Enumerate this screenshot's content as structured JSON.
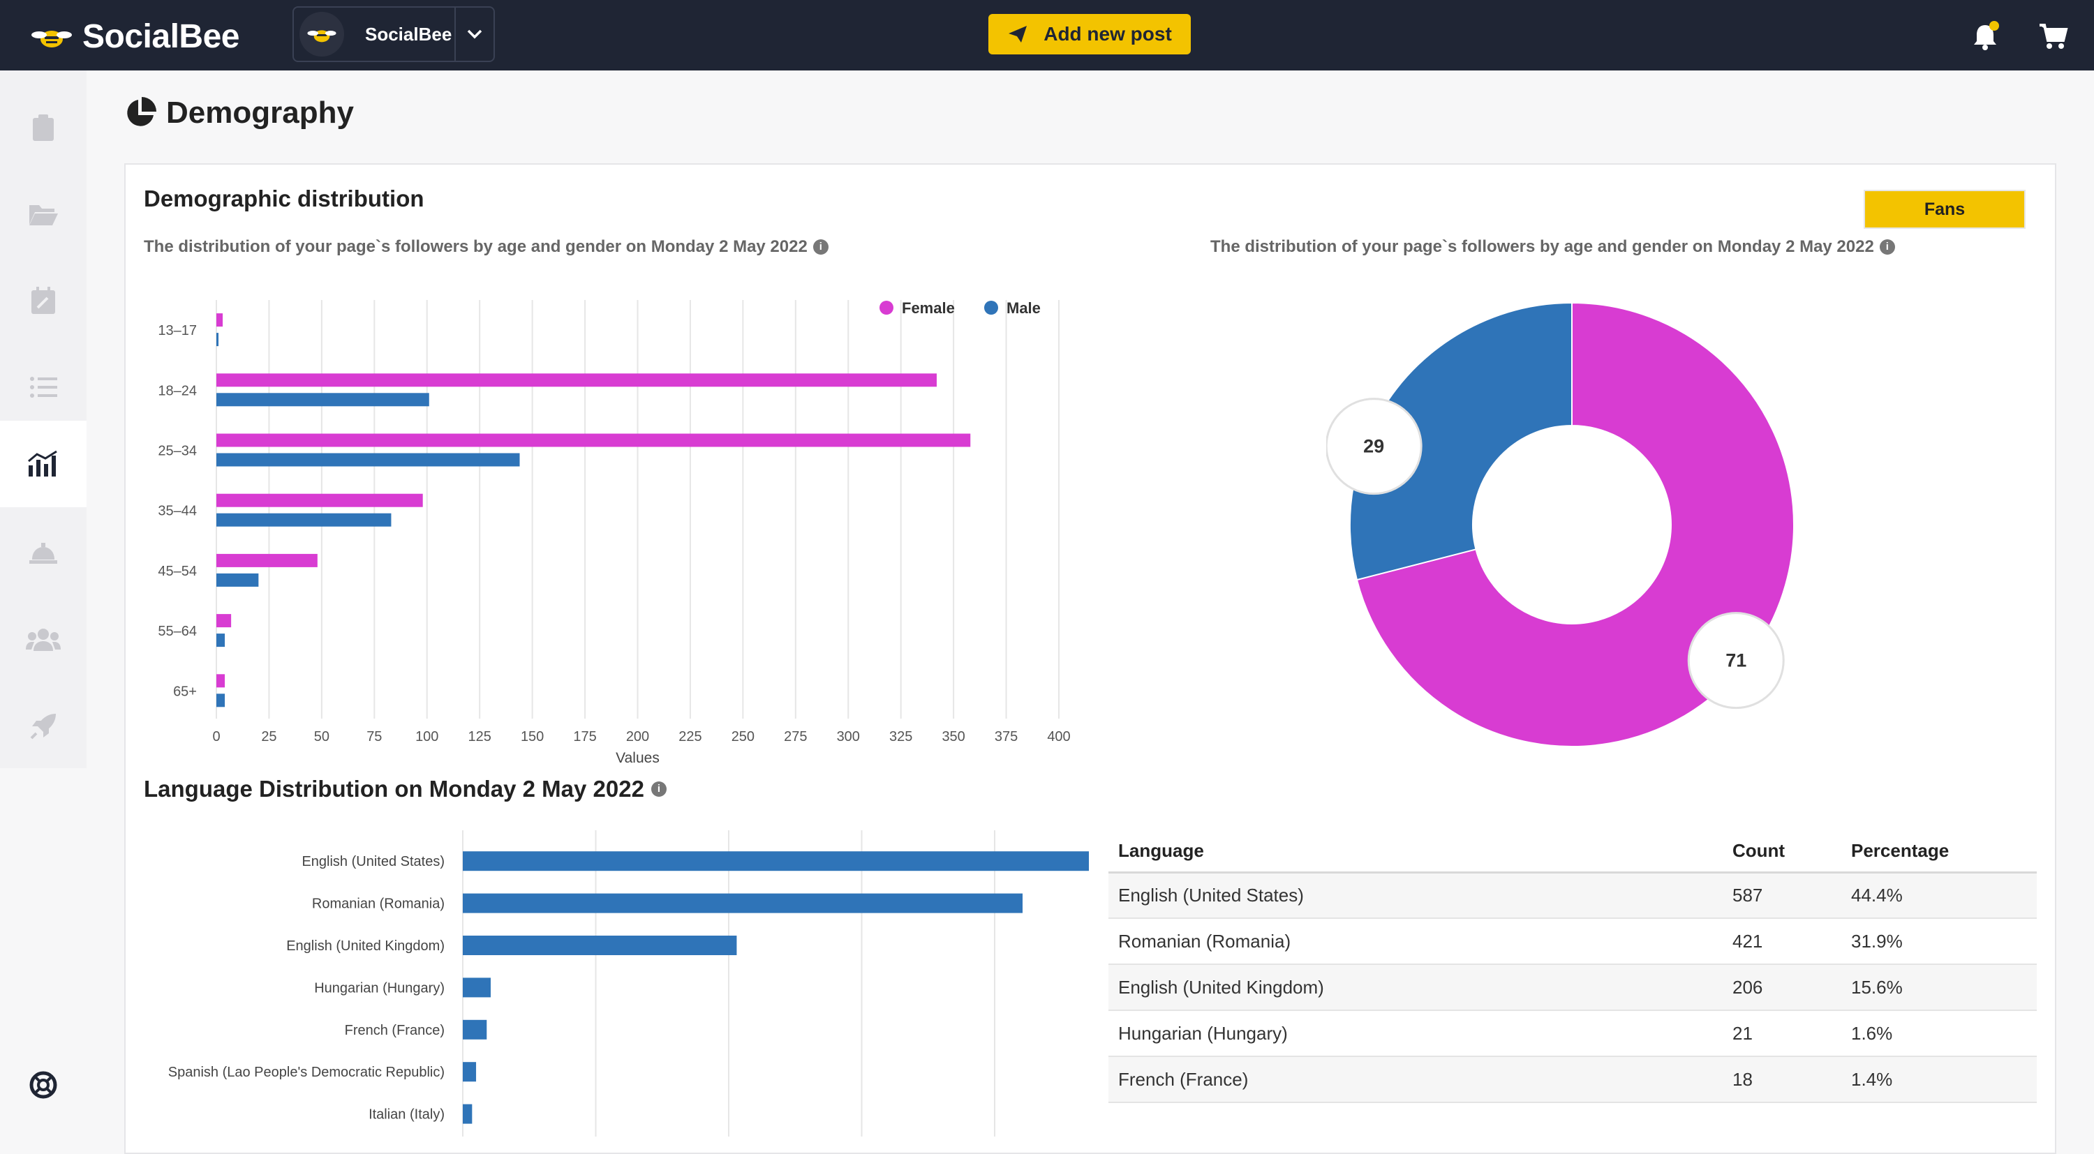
{
  "app": {
    "brand": "SocialBee",
    "account_name": "SocialBee",
    "add_post_label": "Add new post"
  },
  "colors": {
    "topbar": "#1f2534",
    "accent": "#f3c300",
    "female": "#d83cd2",
    "male": "#2f74b8"
  },
  "sidebar": {
    "items": [
      {
        "icon": "clipboard-icon"
      },
      {
        "icon": "folder-icon"
      },
      {
        "icon": "calendar-icon"
      },
      {
        "icon": "list-icon"
      },
      {
        "icon": "analytics-icon",
        "active": true
      },
      {
        "icon": "concierge-bell-icon"
      },
      {
        "icon": "users-icon"
      },
      {
        "icon": "rocket-icon"
      }
    ],
    "help_icon": "lifebuoy-icon"
  },
  "page": {
    "title": "Demography"
  },
  "demographic": {
    "title": "Demographic distribution",
    "subtitle_left": "The distribution of your page`s followers by age and gender on Monday 2 May 2022",
    "subtitle_right": "The distribution of your page`s followers by age and gender on Monday 2 May 2022",
    "fans_button": "Fans"
  },
  "language": {
    "title": "Language Distribution on Monday 2 May 2022",
    "table": {
      "headers": [
        "Language",
        "Count",
        "Percentage"
      ],
      "rows": [
        [
          "English (United States)",
          "587",
          "44.4%"
        ],
        [
          "Romanian (Romania)",
          "421",
          "31.9%"
        ],
        [
          "English (United Kingdom)",
          "206",
          "15.6%"
        ],
        [
          "Hungarian (Hungary)",
          "21",
          "1.6%"
        ],
        [
          "French (France)",
          "18",
          "1.4%"
        ]
      ]
    }
  },
  "chart_data": [
    {
      "type": "bar",
      "orientation": "horizontal",
      "categories": [
        "13-17",
        "18-24",
        "25-34",
        "35-44",
        "45-54",
        "55-64",
        "65+"
      ],
      "series": [
        {
          "name": "Female",
          "color": "#d83cd2",
          "values": [
            3,
            342,
            358,
            98,
            48,
            7,
            4
          ]
        },
        {
          "name": "Male",
          "color": "#2f74b8",
          "values": [
            1,
            101,
            144,
            83,
            20,
            4,
            4
          ]
        }
      ],
      "xlabel": "Values",
      "xlim": [
        0,
        400
      ],
      "xticks": [
        0,
        25,
        50,
        75,
        100,
        125,
        150,
        175,
        200,
        225,
        250,
        275,
        300,
        325,
        350,
        375,
        400
      ],
      "legend": "top-right",
      "grid": true
    },
    {
      "type": "pie",
      "variant": "donut",
      "slices": [
        {
          "name": "Female",
          "value": 71,
          "label": "71",
          "color": "#d83cd2"
        },
        {
          "name": "Male",
          "value": 29,
          "label": "29",
          "color": "#2f74b8"
        }
      ]
    },
    {
      "type": "bar",
      "orientation": "horizontal",
      "categories": [
        "English (United States)",
        "Romanian (Romania)",
        "English (United Kingdom)",
        "Hungarian (Hungary)",
        "French (France)",
        "Spanish (Lao People's Democratic Republic)",
        "Italian (Italy)"
      ],
      "values": [
        587,
        421,
        206,
        21,
        18,
        10,
        7
      ],
      "xlim": [
        0,
        600
      ],
      "grid": true,
      "color": "#2f74b8"
    }
  ]
}
